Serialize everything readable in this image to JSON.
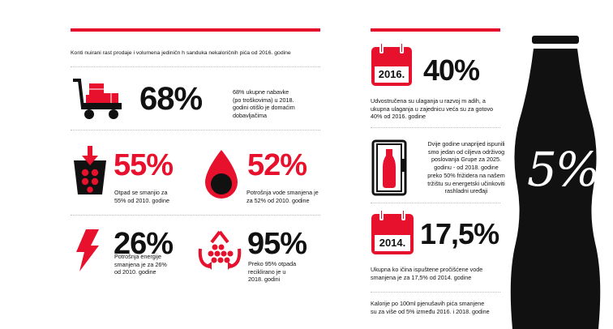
{
  "left": {
    "intro": "Konti nuirani rast prodaje i volumena jediničn h sanduka nekaloričnih pića od 2016. godine",
    "stat1": {
      "value": "68%",
      "line1": "68% ukupne nabavke",
      "line2": "(po troškovima) u 2018.",
      "line3": "godini otišlo je domaćim",
      "line4": "dobavljačima"
    },
    "stat2": {
      "value": "55%",
      "line1": "Otpad se smanjio za",
      "line2": "55% od 2010. godine"
    },
    "stat3": {
      "value": "52%",
      "line1": "Potrošnja vode smanjena je",
      "line2": "za 52% od 2010. godine"
    },
    "stat4": {
      "value": "26%",
      "line1": "Potrošnja energije",
      "line2": "smanjena je za 26%",
      "line3": "od 2010. godine"
    },
    "stat5": {
      "value": "95%",
      "line1": "Preko 95% otpada",
      "line2": "recikliranо je u",
      "line3": "2018. godini"
    }
  },
  "right": {
    "cal1_year": "2016.",
    "stat6": {
      "value": "40%",
      "line1": "Udvostručena su ulaganja u razvoj m adih, a",
      "line2": "ukupna ulaganja u zajednicu veća su za gotovo",
      "line3": "40% od 2016. godine"
    },
    "fridge": {
      "line1": "Dvije godine unaprijed ispunili",
      "line2": "smo jedan od ciljeva održivog",
      "line3": "poslovanja Grupe za 2025.",
      "line4": "godinu - od 2018. godine",
      "line5": "preko 50% frižidera na našem",
      "line6": "tržištu su energetski učinkoviti",
      "line7": "rashladni uređaji"
    },
    "cal2_year": "2014.",
    "stat7": {
      "value": "17,5%",
      "line1": "Ukupna ko ičina ispuštene pročišćene vode",
      "line2": "smanjena je za 17,5% od 2014. godine"
    },
    "calories": {
      "line1": "Kalorije po 100ml pjenušavih pića smanjene",
      "line2": "su za više od 5% između 2016. i 2018. godine"
    },
    "bottle_label": "5%"
  },
  "colors": {
    "red": "#e8112d",
    "black": "#111111"
  }
}
